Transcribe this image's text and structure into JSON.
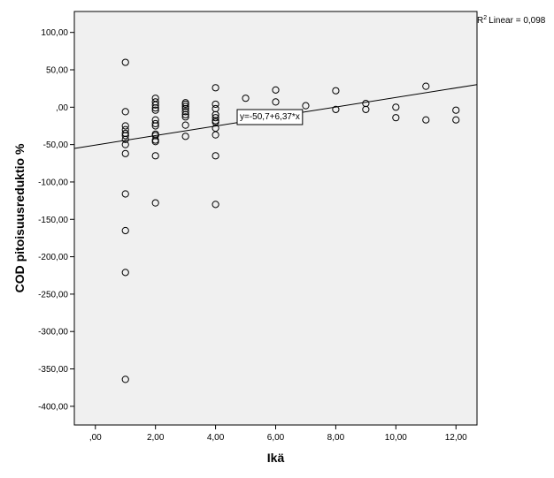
{
  "chart_data": {
    "type": "scatter",
    "title": "",
    "xlabel": "Ikä",
    "ylabel": "COD pitoisuusreduktio %",
    "xlim": [
      -0.7,
      12.7
    ],
    "ylim": [
      -425,
      128
    ],
    "x_ticks": [
      0,
      2,
      4,
      6,
      8,
      10,
      12
    ],
    "x_tick_labels": [
      ",00",
      "2,00",
      "4,00",
      "6,00",
      "8,00",
      "10,00",
      "12,00"
    ],
    "y_ticks": [
      100,
      50,
      0,
      -50,
      -100,
      -150,
      -200,
      -250,
      -300,
      -350,
      -400
    ],
    "y_tick_labels": [
      "100,00",
      "50,00",
      ",00",
      "-50,00",
      "-100,00",
      "-150,00",
      "-200,00",
      "-250,00",
      "-300,00",
      "-350,00",
      "-400,00"
    ],
    "grid": false,
    "background_color": "#f0f0f0",
    "points": [
      {
        "x": 1,
        "y": 60
      },
      {
        "x": 1,
        "y": -6
      },
      {
        "x": 1,
        "y": -25
      },
      {
        "x": 1,
        "y": -30
      },
      {
        "x": 1,
        "y": -35
      },
      {
        "x": 1,
        "y": -38
      },
      {
        "x": 1,
        "y": -43
      },
      {
        "x": 1,
        "y": -50
      },
      {
        "x": 1,
        "y": -62
      },
      {
        "x": 1,
        "y": -116
      },
      {
        "x": 1,
        "y": -165
      },
      {
        "x": 1,
        "y": -221
      },
      {
        "x": 1,
        "y": -364
      },
      {
        "x": 2,
        "y": 12
      },
      {
        "x": 2,
        "y": 7
      },
      {
        "x": 2,
        "y": 3
      },
      {
        "x": 2,
        "y": -1
      },
      {
        "x": 2,
        "y": -4
      },
      {
        "x": 2,
        "y": -17
      },
      {
        "x": 2,
        "y": -22
      },
      {
        "x": 2,
        "y": -25
      },
      {
        "x": 2,
        "y": -36
      },
      {
        "x": 2,
        "y": -38
      },
      {
        "x": 2,
        "y": -44
      },
      {
        "x": 2,
        "y": -46
      },
      {
        "x": 2,
        "y": -65
      },
      {
        "x": 2,
        "y": -128
      },
      {
        "x": 3,
        "y": 6
      },
      {
        "x": 3,
        "y": 4
      },
      {
        "x": 3,
        "y": 1
      },
      {
        "x": 3,
        "y": -2
      },
      {
        "x": 3,
        "y": -6
      },
      {
        "x": 3,
        "y": -10
      },
      {
        "x": 3,
        "y": -13
      },
      {
        "x": 3,
        "y": -24
      },
      {
        "x": 3,
        "y": -39
      },
      {
        "x": 4,
        "y": 26
      },
      {
        "x": 4,
        "y": 4
      },
      {
        "x": 4,
        "y": -2
      },
      {
        "x": 4,
        "y": -10
      },
      {
        "x": 4,
        "y": -14
      },
      {
        "x": 4,
        "y": -18
      },
      {
        "x": 4,
        "y": -20
      },
      {
        "x": 4,
        "y": -28
      },
      {
        "x": 4,
        "y": -37
      },
      {
        "x": 4,
        "y": -65
      },
      {
        "x": 4,
        "y": -130
      },
      {
        "x": 5,
        "y": 12
      },
      {
        "x": 6,
        "y": 23
      },
      {
        "x": 6,
        "y": 7
      },
      {
        "x": 7,
        "y": 2
      },
      {
        "x": 8,
        "y": 22
      },
      {
        "x": 8,
        "y": -3
      },
      {
        "x": 9,
        "y": 5
      },
      {
        "x": 9,
        "y": -3
      },
      {
        "x": 10,
        "y": 0
      },
      {
        "x": 10,
        "y": -14
      },
      {
        "x": 11,
        "y": 28
      },
      {
        "x": 11,
        "y": -17
      },
      {
        "x": 12,
        "y": -4
      },
      {
        "x": 12,
        "y": -17
      }
    ],
    "fit_line": {
      "intercept": -50.7,
      "slope": 6.37
    },
    "fit_label": "y=-50,7+6,37*x",
    "r2_label": "Linear = 0,098",
    "r2_prefix": "R",
    "r2_superscript": "2"
  }
}
